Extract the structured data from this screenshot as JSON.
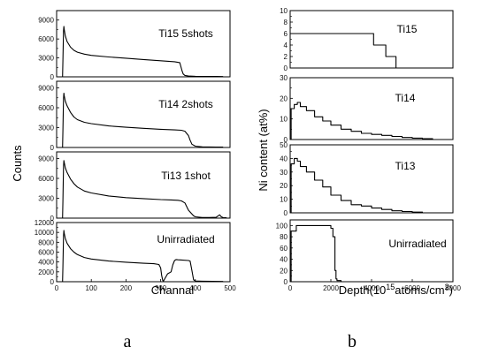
{
  "figure": {
    "label_a": "a",
    "label_b": "b"
  },
  "chart_data": [
    {
      "id": "a1",
      "type": "line",
      "annotation": "Ti15 5shots",
      "xlim": [
        0,
        500
      ],
      "xticks": [],
      "ylim": [
        0,
        10500
      ],
      "yticks": [
        0,
        3000,
        6000,
        9000
      ],
      "x": [
        0,
        17,
        18,
        20,
        21,
        22,
        25,
        30,
        40,
        50,
        60,
        80,
        100,
        150,
        200,
        250,
        300,
        340,
        355,
        362,
        365,
        370,
        380,
        400,
        420,
        440,
        460,
        480
      ],
      "y": [
        0,
        0,
        2500,
        7300,
        8000,
        7500,
        6500,
        5600,
        4700,
        4200,
        3900,
        3600,
        3400,
        3150,
        2950,
        2750,
        2550,
        2400,
        2250,
        900,
        450,
        220,
        120,
        90,
        70,
        60,
        50,
        40
      ]
    },
    {
      "id": "a2",
      "type": "line",
      "annotation": "Ti14 2shots",
      "xlim": [
        0,
        500
      ],
      "xticks": [],
      "ylim": [
        0,
        10000
      ],
      "yticks": [
        0,
        3000,
        6000,
        9000
      ],
      "x": [
        0,
        17,
        18,
        20,
        21,
        22,
        25,
        30,
        40,
        50,
        60,
        80,
        100,
        150,
        200,
        250,
        300,
        340,
        360,
        370,
        380,
        385,
        390,
        400,
        420,
        440,
        460,
        480
      ],
      "y": [
        0,
        0,
        2500,
        7400,
        8200,
        7800,
        7000,
        6300,
        5300,
        4600,
        4200,
        3800,
        3600,
        3250,
        3050,
        2900,
        2750,
        2650,
        2600,
        2450,
        1800,
        1100,
        500,
        200,
        100,
        80,
        60,
        50
      ]
    },
    {
      "id": "a3",
      "type": "line",
      "annotation": "Ti13 1shot",
      "xlim": [
        0,
        500
      ],
      "xticks": [],
      "ylim": [
        0,
        10000
      ],
      "yticks": [
        0,
        3000,
        6000,
        9000
      ],
      "x": [
        0,
        17,
        18,
        20,
        21,
        22,
        25,
        30,
        40,
        50,
        60,
        80,
        100,
        150,
        200,
        250,
        300,
        330,
        350,
        360,
        370,
        380,
        395,
        400,
        420,
        440,
        460,
        470,
        475,
        480,
        490
      ],
      "y": [
        0,
        0,
        2500,
        7800,
        8700,
        8400,
        7600,
        6900,
        5900,
        5200,
        4700,
        4100,
        3800,
        3350,
        3100,
        2950,
        2800,
        2750,
        2700,
        2600,
        2300,
        1200,
        350,
        200,
        100,
        90,
        120,
        500,
        200,
        80,
        50
      ]
    },
    {
      "id": "a4",
      "type": "line",
      "annotation": "Unirradiated",
      "xlabel": "Channal",
      "ylabel": "Counts",
      "xlim": [
        0,
        500
      ],
      "xticks": [
        0,
        100,
        200,
        300,
        400,
        500
      ],
      "ylim": [
        0,
        12000
      ],
      "yticks": [
        0,
        2000,
        4000,
        6000,
        8000,
        10000,
        12000
      ],
      "x": [
        0,
        17,
        18,
        20,
        21,
        22,
        25,
        30,
        40,
        50,
        60,
        80,
        100,
        150,
        200,
        250,
        280,
        295,
        300,
        303,
        306,
        308,
        310,
        320,
        330,
        335,
        340,
        345,
        350,
        360,
        380,
        385,
        390,
        395,
        400,
        420,
        450,
        480
      ],
      "y": [
        0,
        0,
        3000,
        9300,
        10400,
        9800,
        8800,
        7800,
        6700,
        6000,
        5500,
        4900,
        4600,
        4200,
        3950,
        3750,
        3650,
        3500,
        2800,
        1200,
        250,
        100,
        350,
        1600,
        2000,
        3400,
        4300,
        4500,
        4450,
        4400,
        4300,
        4200,
        2300,
        400,
        150,
        100,
        80,
        60
      ]
    },
    {
      "id": "b1",
      "type": "line",
      "annotation": "Ti15",
      "xlim": [
        0,
        8000
      ],
      "xticks": [],
      "ylim": [
        0,
        10
      ],
      "yticks": [
        0,
        2,
        4,
        6,
        8,
        10
      ],
      "x": [
        0,
        4100,
        4100,
        4700,
        4700,
        5200,
        5200,
        5400,
        5400,
        8000
      ],
      "y": [
        6,
        6,
        4,
        4,
        2,
        2,
        0,
        0,
        0,
        0
      ]
    },
    {
      "id": "b2",
      "type": "line",
      "annotation": "Ti14",
      "xlim": [
        0,
        8000
      ],
      "xticks": [],
      "ylim": [
        0,
        30
      ],
      "yticks": [
        0,
        10,
        20,
        30
      ],
      "x": [
        0,
        50,
        50,
        200,
        200,
        350,
        350,
        500,
        500,
        800,
        800,
        1200,
        1200,
        1600,
        1600,
        2000,
        2000,
        2500,
        2500,
        3000,
        3000,
        3500,
        3500,
        4000,
        4000,
        4500,
        4500,
        5000,
        5000,
        5500,
        5500,
        6000,
        6000,
        6500,
        6500,
        7000,
        7000,
        8000
      ],
      "y": [
        0,
        0,
        15,
        15,
        17,
        17,
        18,
        18,
        16,
        16,
        14,
        14,
        11,
        11,
        9,
        9,
        7,
        7,
        5,
        5,
        4,
        4,
        3,
        3,
        2.5,
        2.5,
        2,
        2,
        1.5,
        1.5,
        1,
        1,
        0.7,
        0.7,
        0.4,
        0.4,
        0,
        0
      ]
    },
    {
      "id": "b3",
      "type": "line",
      "annotation": "Ti13",
      "ylabel": "Ni content (at%)",
      "xlim": [
        0,
        8000
      ],
      "xticks": [],
      "ylim": [
        0,
        50
      ],
      "yticks": [
        0,
        10,
        20,
        30,
        40,
        50
      ],
      "x": [
        0,
        50,
        50,
        200,
        200,
        350,
        350,
        500,
        500,
        800,
        800,
        1200,
        1200,
        1600,
        1600,
        2000,
        2000,
        2500,
        2500,
        3000,
        3000,
        3500,
        3500,
        4000,
        4000,
        4500,
        4500,
        5000,
        5000,
        5500,
        5500,
        6000,
        6000,
        6500,
        6500,
        8000
      ],
      "y": [
        0,
        0,
        36,
        36,
        40,
        40,
        38,
        38,
        34,
        34,
        30,
        30,
        24,
        24,
        19,
        19,
        13,
        13,
        9,
        9,
        6,
        6,
        5,
        5,
        3.5,
        3.5,
        2.5,
        2.5,
        1.5,
        1.5,
        1,
        1,
        0.5,
        0.5,
        0,
        0
      ]
    },
    {
      "id": "b4",
      "type": "line",
      "annotation": "Unirradiated",
      "xlabel_parts": [
        "Depth(10",
        "15",
        "atoms/cm",
        "2",
        ")"
      ],
      "xlim": [
        0,
        8000
      ],
      "xticks": [
        0,
        2000,
        4000,
        6000,
        8000
      ],
      "ylim": [
        0,
        110
      ],
      "yticks": [
        0,
        20,
        40,
        60,
        80,
        100
      ],
      "x": [
        0,
        50,
        50,
        300,
        300,
        2000,
        2000,
        2100,
        2100,
        2200,
        2200,
        2250,
        2250,
        2300,
        2300,
        2500,
        2500,
        8000
      ],
      "y": [
        0,
        0,
        90,
        90,
        100,
        100,
        95,
        95,
        80,
        80,
        20,
        20,
        5,
        5,
        2,
        2,
        0,
        0
      ]
    }
  ]
}
